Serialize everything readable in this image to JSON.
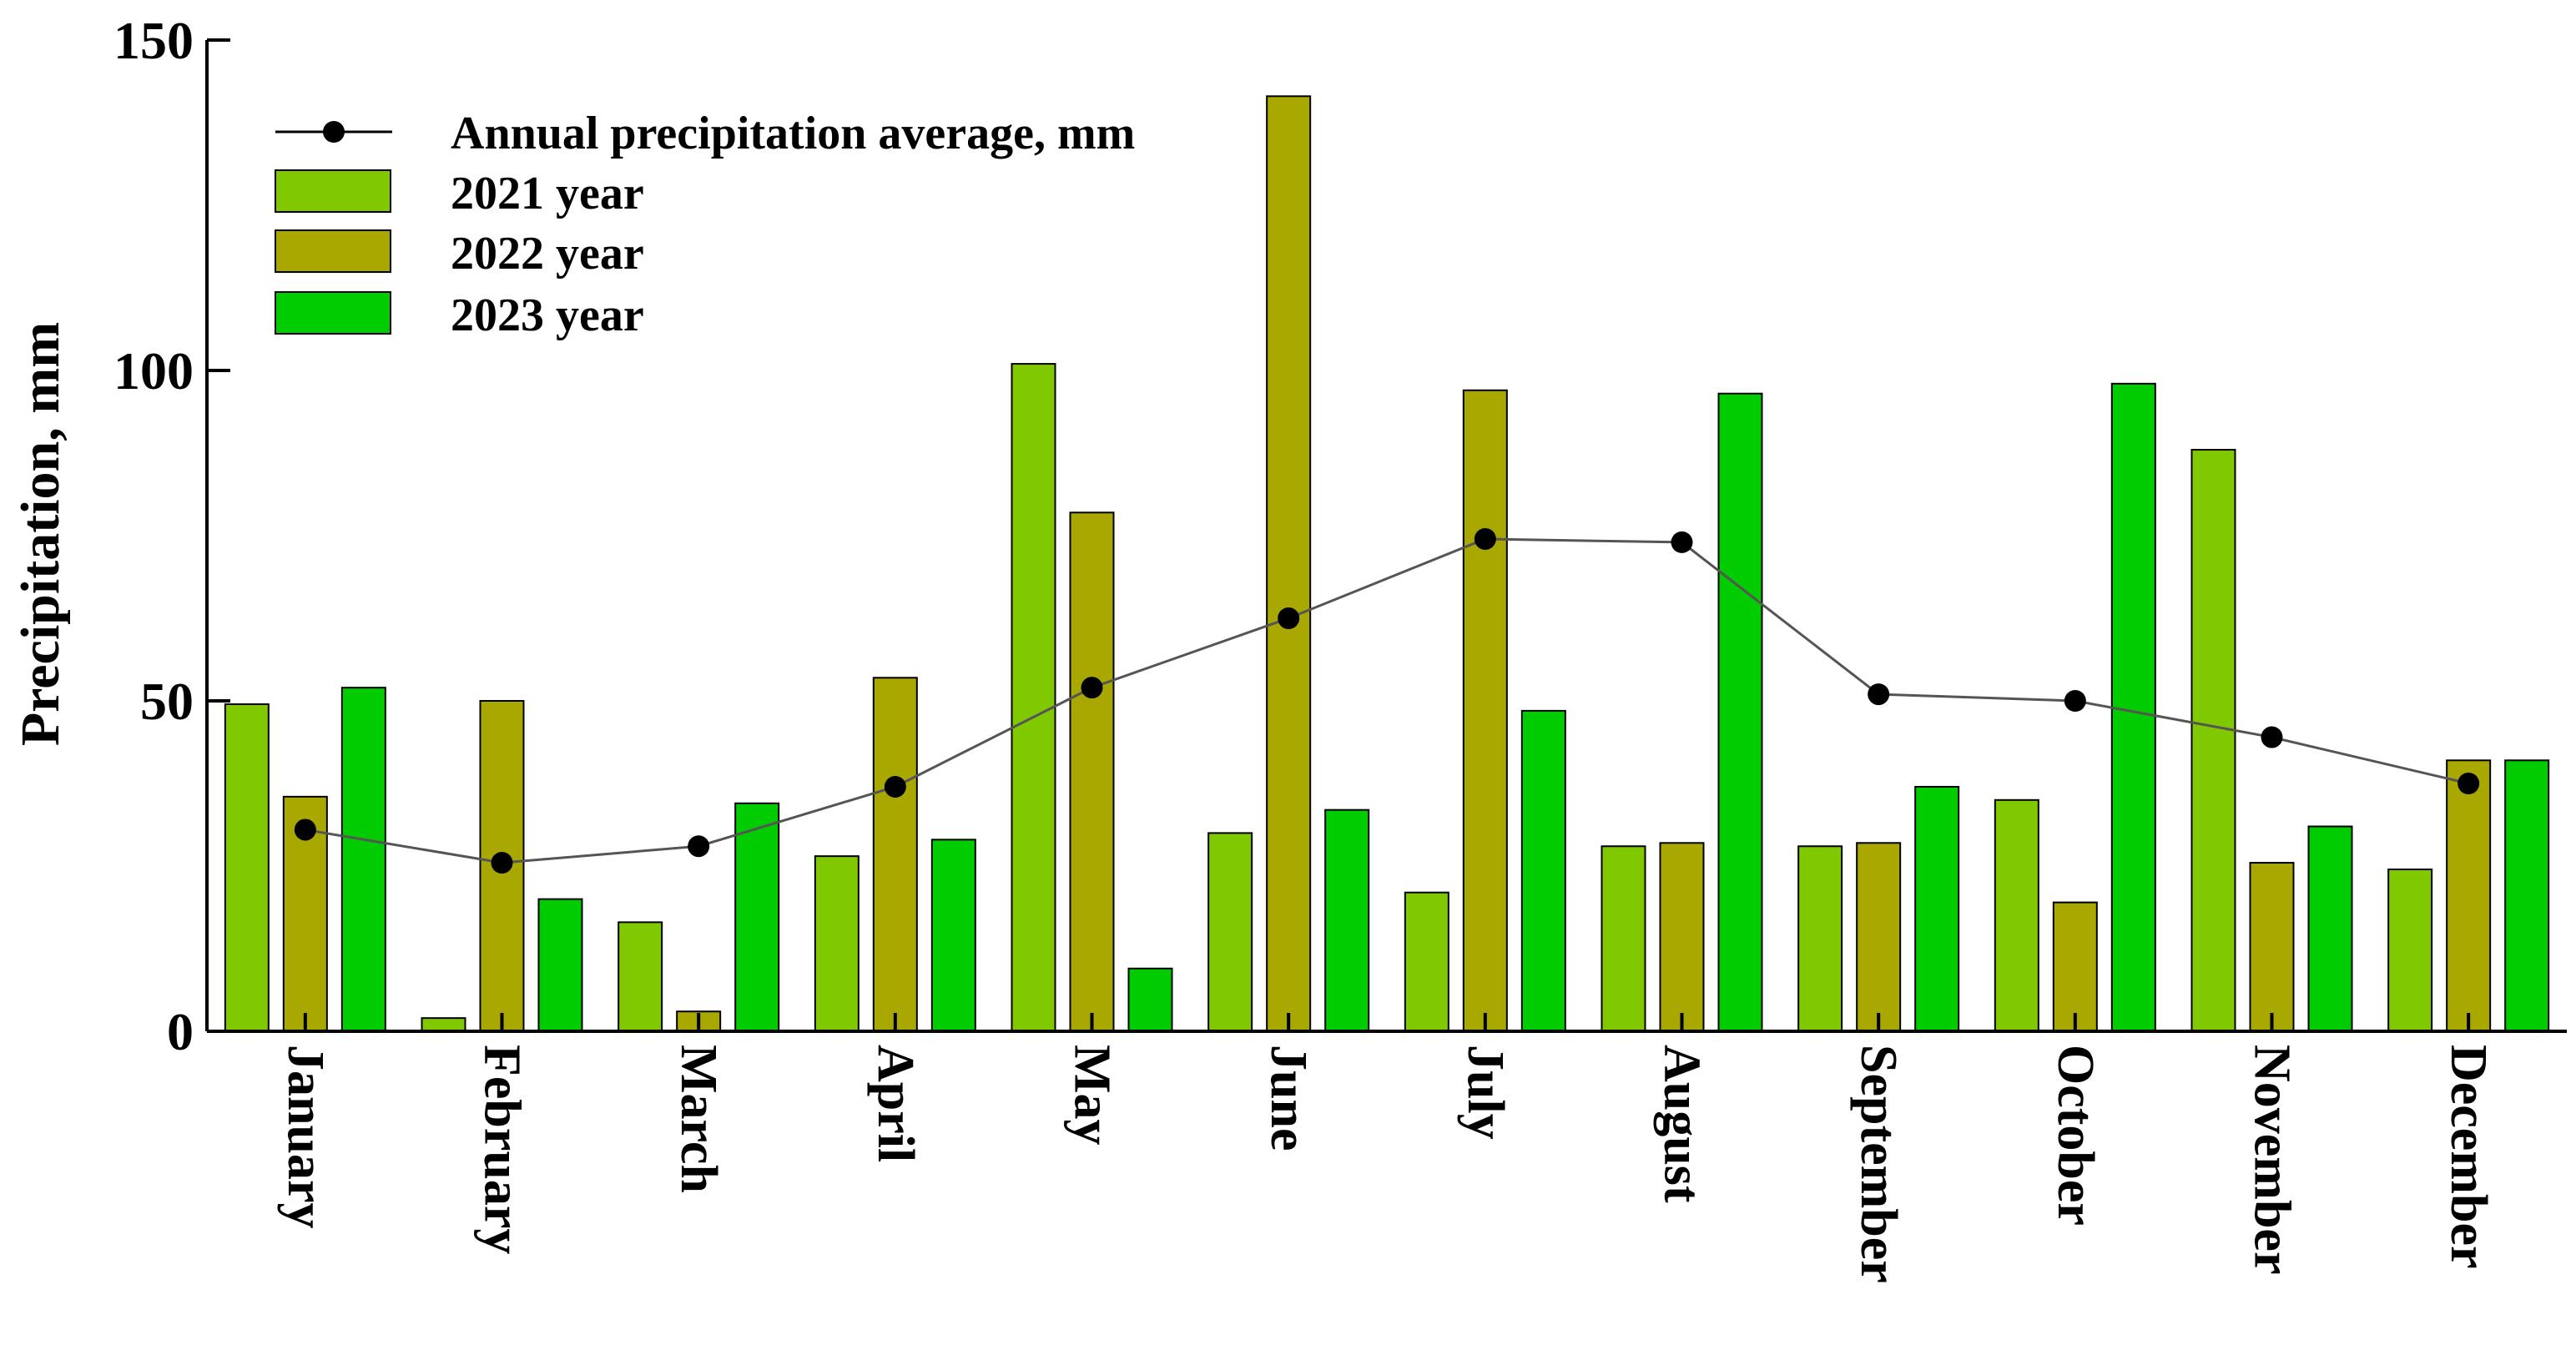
{
  "chart_data": {
    "type": "bar",
    "title": "",
    "xlabel": "",
    "ylabel": "Precipitation, mm",
    "ylim": [
      0,
      150
    ],
    "yticks": [
      "0",
      "50",
      "100",
      "150"
    ],
    "categories": [
      "January",
      "February",
      "March",
      "April",
      "May",
      "June",
      "July",
      "August",
      "September",
      "October",
      "November",
      "December"
    ],
    "series": [
      {
        "name": "2021 year",
        "color": "#80C800",
        "values": [
          49.5,
          2,
          16.5,
          26.5,
          101,
          30,
          21,
          28,
          28,
          35,
          88,
          24.5
        ]
      },
      {
        "name": "2022 year",
        "color": "#A9A800",
        "values": [
          35.5,
          50,
          3,
          53.5,
          78.5,
          141.5,
          97,
          28.5,
          28.5,
          19.5,
          25.5,
          41
        ]
      },
      {
        "name": "2023 year",
        "color": "#00CC00",
        "values": [
          52,
          20,
          34.5,
          29,
          9.5,
          33.5,
          48.5,
          96.5,
          37,
          98,
          31,
          41
        ]
      }
    ],
    "line": {
      "name": "Annual precipitation average, mm",
      "color": "#000000",
      "values": [
        30.5,
        25.5,
        28,
        37,
        52,
        62.5,
        74.5,
        74,
        51,
        50,
        44.5,
        37.5
      ]
    },
    "legend_position": "top-left",
    "grid": false
  }
}
